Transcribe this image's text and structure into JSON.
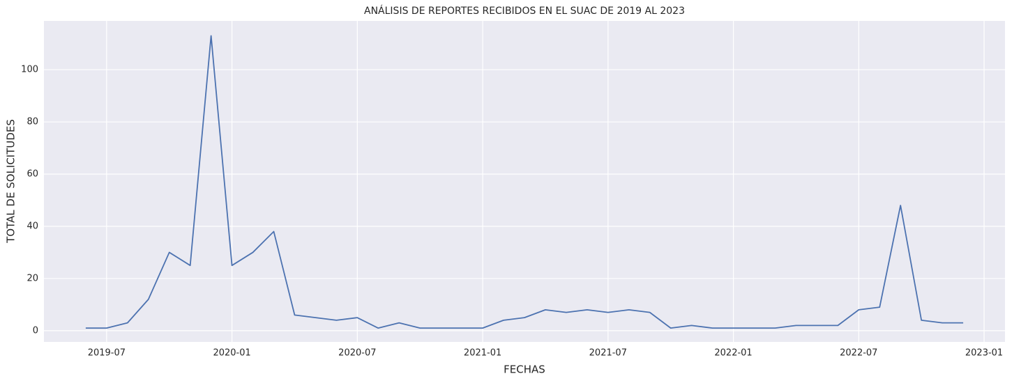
{
  "chart_data": {
    "type": "line",
    "title": "ANÁLISIS DE REPORTES RECIBIDOS EN EL SUAC DE 2019 AL 2023",
    "x_label": "FECHAS",
    "y_label": "TOTAL DE SOLICITUDES",
    "x": [
      "2019-06",
      "2019-07",
      "2019-08",
      "2019-09",
      "2019-10",
      "2019-11",
      "2019-12",
      "2020-01",
      "2020-02",
      "2020-03",
      "2020-04",
      "2020-05",
      "2020-06",
      "2020-07",
      "2020-08",
      "2020-09",
      "2020-10",
      "2020-11",
      "2020-12",
      "2021-01",
      "2021-02",
      "2021-03",
      "2021-04",
      "2021-05",
      "2021-06",
      "2021-07",
      "2021-08",
      "2021-09",
      "2021-10",
      "2021-11",
      "2021-12",
      "2022-01",
      "2022-02",
      "2022-03",
      "2022-04",
      "2022-05",
      "2022-06",
      "2022-07",
      "2022-08",
      "2022-09",
      "2022-10",
      "2022-11",
      "2022-12"
    ],
    "series": [
      {
        "name": "TOTAL DE SOLICITUDES",
        "color": "#4c72b0",
        "values": [
          1,
          1,
          3,
          12,
          30,
          25,
          113,
          25,
          30,
          38,
          6,
          5,
          4,
          5,
          1,
          3,
          1,
          1,
          1,
          1,
          4,
          5,
          8,
          7,
          8,
          7,
          8,
          7,
          1,
          2,
          1,
          1,
          1,
          1,
          2,
          2,
          2,
          8,
          9,
          48,
          4,
          3,
          3
        ]
      }
    ],
    "xlim": [
      "2019-04",
      "2023-02"
    ],
    "xticks": [
      "2019-07",
      "2020-01",
      "2020-07",
      "2021-01",
      "2021-07",
      "2022-01",
      "2022-07",
      "2023-01"
    ],
    "ylim": [
      -4.3,
      118.7
    ],
    "yticks": [
      0,
      20,
      40,
      60,
      80,
      100
    ],
    "grid": true
  }
}
